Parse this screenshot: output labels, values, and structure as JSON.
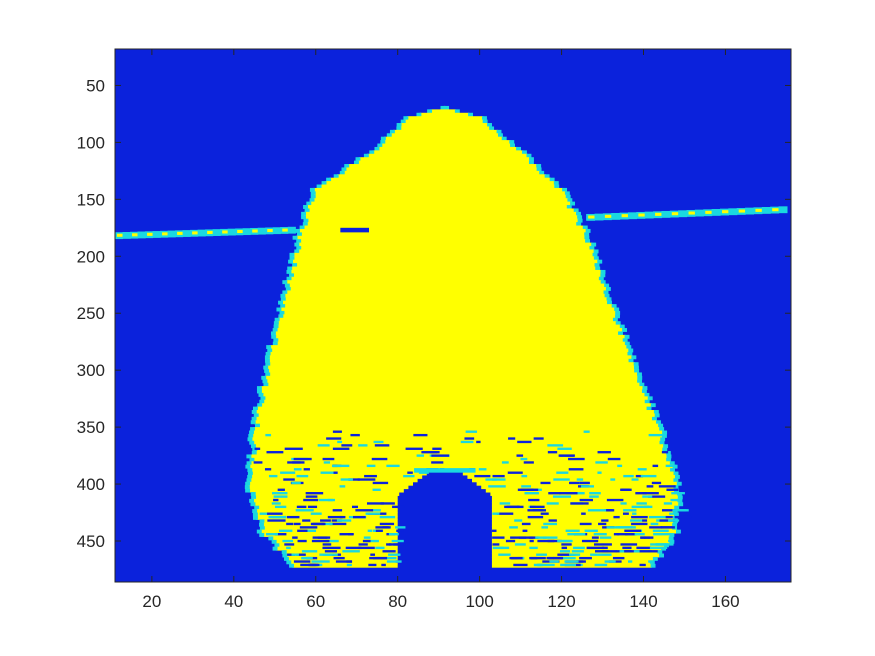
{
  "chart_data": {
    "type": "heatmap",
    "title": "",
    "xlabel": "",
    "ylabel": "",
    "xlim": [
      11,
      176
    ],
    "ylim": [
      486,
      18
    ],
    "y_reversed": true,
    "x_ticks": [
      20,
      40,
      60,
      80,
      100,
      120,
      140,
      160
    ],
    "y_ticks": [
      50,
      100,
      150,
      200,
      250,
      300,
      350,
      400,
      450
    ],
    "colormap": "parula",
    "levels": [
      {
        "name": "background",
        "color": "#0b22dc"
      },
      {
        "name": "low",
        "color": "#1ad8e0"
      },
      {
        "name": "high",
        "color": "#ffff00"
      }
    ],
    "regions": {
      "main_body": {
        "top_row": 65,
        "bottom_row": 470,
        "left_edge_x": [
          [
            65,
            86
          ],
          [
            100,
            76
          ],
          [
            140,
            60
          ],
          [
            180,
            56
          ],
          [
            240,
            52
          ],
          [
            300,
            48
          ],
          [
            350,
            45
          ],
          [
            400,
            44
          ],
          [
            440,
            47
          ],
          [
            470,
            55
          ]
        ],
        "right_edge_x": [
          [
            65,
            96
          ],
          [
            100,
            108
          ],
          [
            140,
            120
          ],
          [
            180,
            126
          ],
          [
            240,
            132
          ],
          [
            300,
            138
          ],
          [
            350,
            144
          ],
          [
            400,
            148
          ],
          [
            440,
            148
          ],
          [
            470,
            142
          ]
        ],
        "notch": {
          "peak_row": 388,
          "x_left": 80,
          "x_right": 103
        }
      },
      "horizontal_band": [
        {
          "x_from": 11,
          "x_to": 55,
          "row_from": 182,
          "row_to": 177
        },
        {
          "x_from": 126,
          "x_to": 175,
          "row_from": 166,
          "row_to": 159
        }
      ]
    }
  }
}
